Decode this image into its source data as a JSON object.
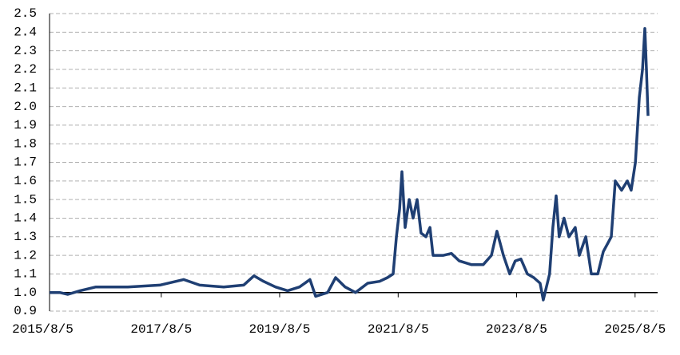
{
  "chart_data": {
    "type": "line",
    "x": [
      "2015/9/16",
      "2015/11/18",
      "2016/1/7",
      "2016/3/22",
      "2016/6/28",
      "2017/1/11",
      "2017/7/27",
      "2017/12/21",
      "2018/3/30",
      "2018/8/25",
      "2018/12/26",
      "2019/2/28",
      "2019/4/28",
      "2019/7/10",
      "2019/9/23",
      "2019/12/6",
      "2020/2/8",
      "2020/3/14",
      "2020/5/27",
      "2020/7/15",
      "2020/9/12",
      "2020/11/15",
      "2021/1/29",
      "2021/4/12",
      "2021/5/31",
      "2021/7/5",
      "2021/7/25",
      "2021/8/14",
      "2021/8/28",
      "2021/9/17",
      "2021/10/12",
      "2021/11/5",
      "2021/11/30",
      "2021/12/24",
      "2022/1/23",
      "2022/2/17",
      "2022/3/8",
      "2022/5/11",
      "2022/6/29",
      "2022/8/17",
      "2022/10/30",
      "2023/1/12",
      "2023/3/3",
      "2023/4/6",
      "2023/5/16",
      "2023/6/24",
      "2023/7/28",
      "2023/9/1",
      "2023/10/11",
      "2023/11/19",
      "2023/12/28",
      "2024/1/17",
      "2024/2/25",
      "2024/3/16",
      "2024/4/5",
      "2024/4/24",
      "2024/5/24",
      "2024/6/23",
      "2024/8/1",
      "2024/8/26",
      "2024/10/5",
      "2024/11/8",
      "2024/12/18",
      "2025/1/21",
      "2025/3/11",
      "2025/4/5",
      "2025/5/14",
      "2025/6/18",
      "2025/7/12",
      "2025/8/7",
      "2025/8/31",
      "2025/9/20",
      "2025/10/4",
      "2025/10/14",
      "2025/10/24"
    ],
    "series": [
      {
        "color": "#1f3f73",
        "values": [
          1.0,
          1.0,
          0.99,
          1.01,
          1.03,
          1.03,
          1.04,
          1.07,
          1.04,
          1.03,
          1.04,
          1.09,
          1.06,
          1.03,
          1.01,
          1.03,
          1.07,
          0.98,
          1.0,
          1.08,
          1.03,
          1.0,
          1.05,
          1.06,
          1.08,
          1.1,
          1.3,
          1.45,
          1.65,
          1.35,
          1.5,
          1.4,
          1.5,
          1.32,
          1.3,
          1.35,
          1.2,
          1.2,
          1.21,
          1.17,
          1.15,
          1.15,
          1.2,
          1.33,
          1.2,
          1.1,
          1.17,
          1.18,
          1.1,
          1.08,
          1.05,
          0.96,
          1.1,
          1.35,
          1.52,
          1.3,
          1.4,
          1.3,
          1.35,
          1.2,
          1.3,
          1.1,
          1.1,
          1.22,
          1.3,
          1.6,
          1.55,
          1.6,
          1.55,
          1.7,
          2.05,
          2.2,
          2.42,
          2.2,
          1.95
        ]
      }
    ],
    "xlim": [
      "2015/9/16",
      "2025/12/22"
    ],
    "xticks": [
      "2015/8/5",
      "2017/8/5",
      "2019/8/5",
      "2021/8/5",
      "2023/8/5",
      "2025/8/5"
    ],
    "ylim": [
      0.9,
      2.5
    ],
    "yticks": [
      2.5,
      2.4,
      2.3,
      2.2,
      2.1,
      {
        "value": 2,
        "label": "2.0"
      },
      1.9,
      1.8,
      1.7,
      1.6,
      1.5,
      1.4,
      1.3,
      1.2,
      1.1,
      {
        "value": 1,
        "label": "1.0"
      },
      0.9
    ],
    "grid": true,
    "xaxis_crosses": 1
  }
}
